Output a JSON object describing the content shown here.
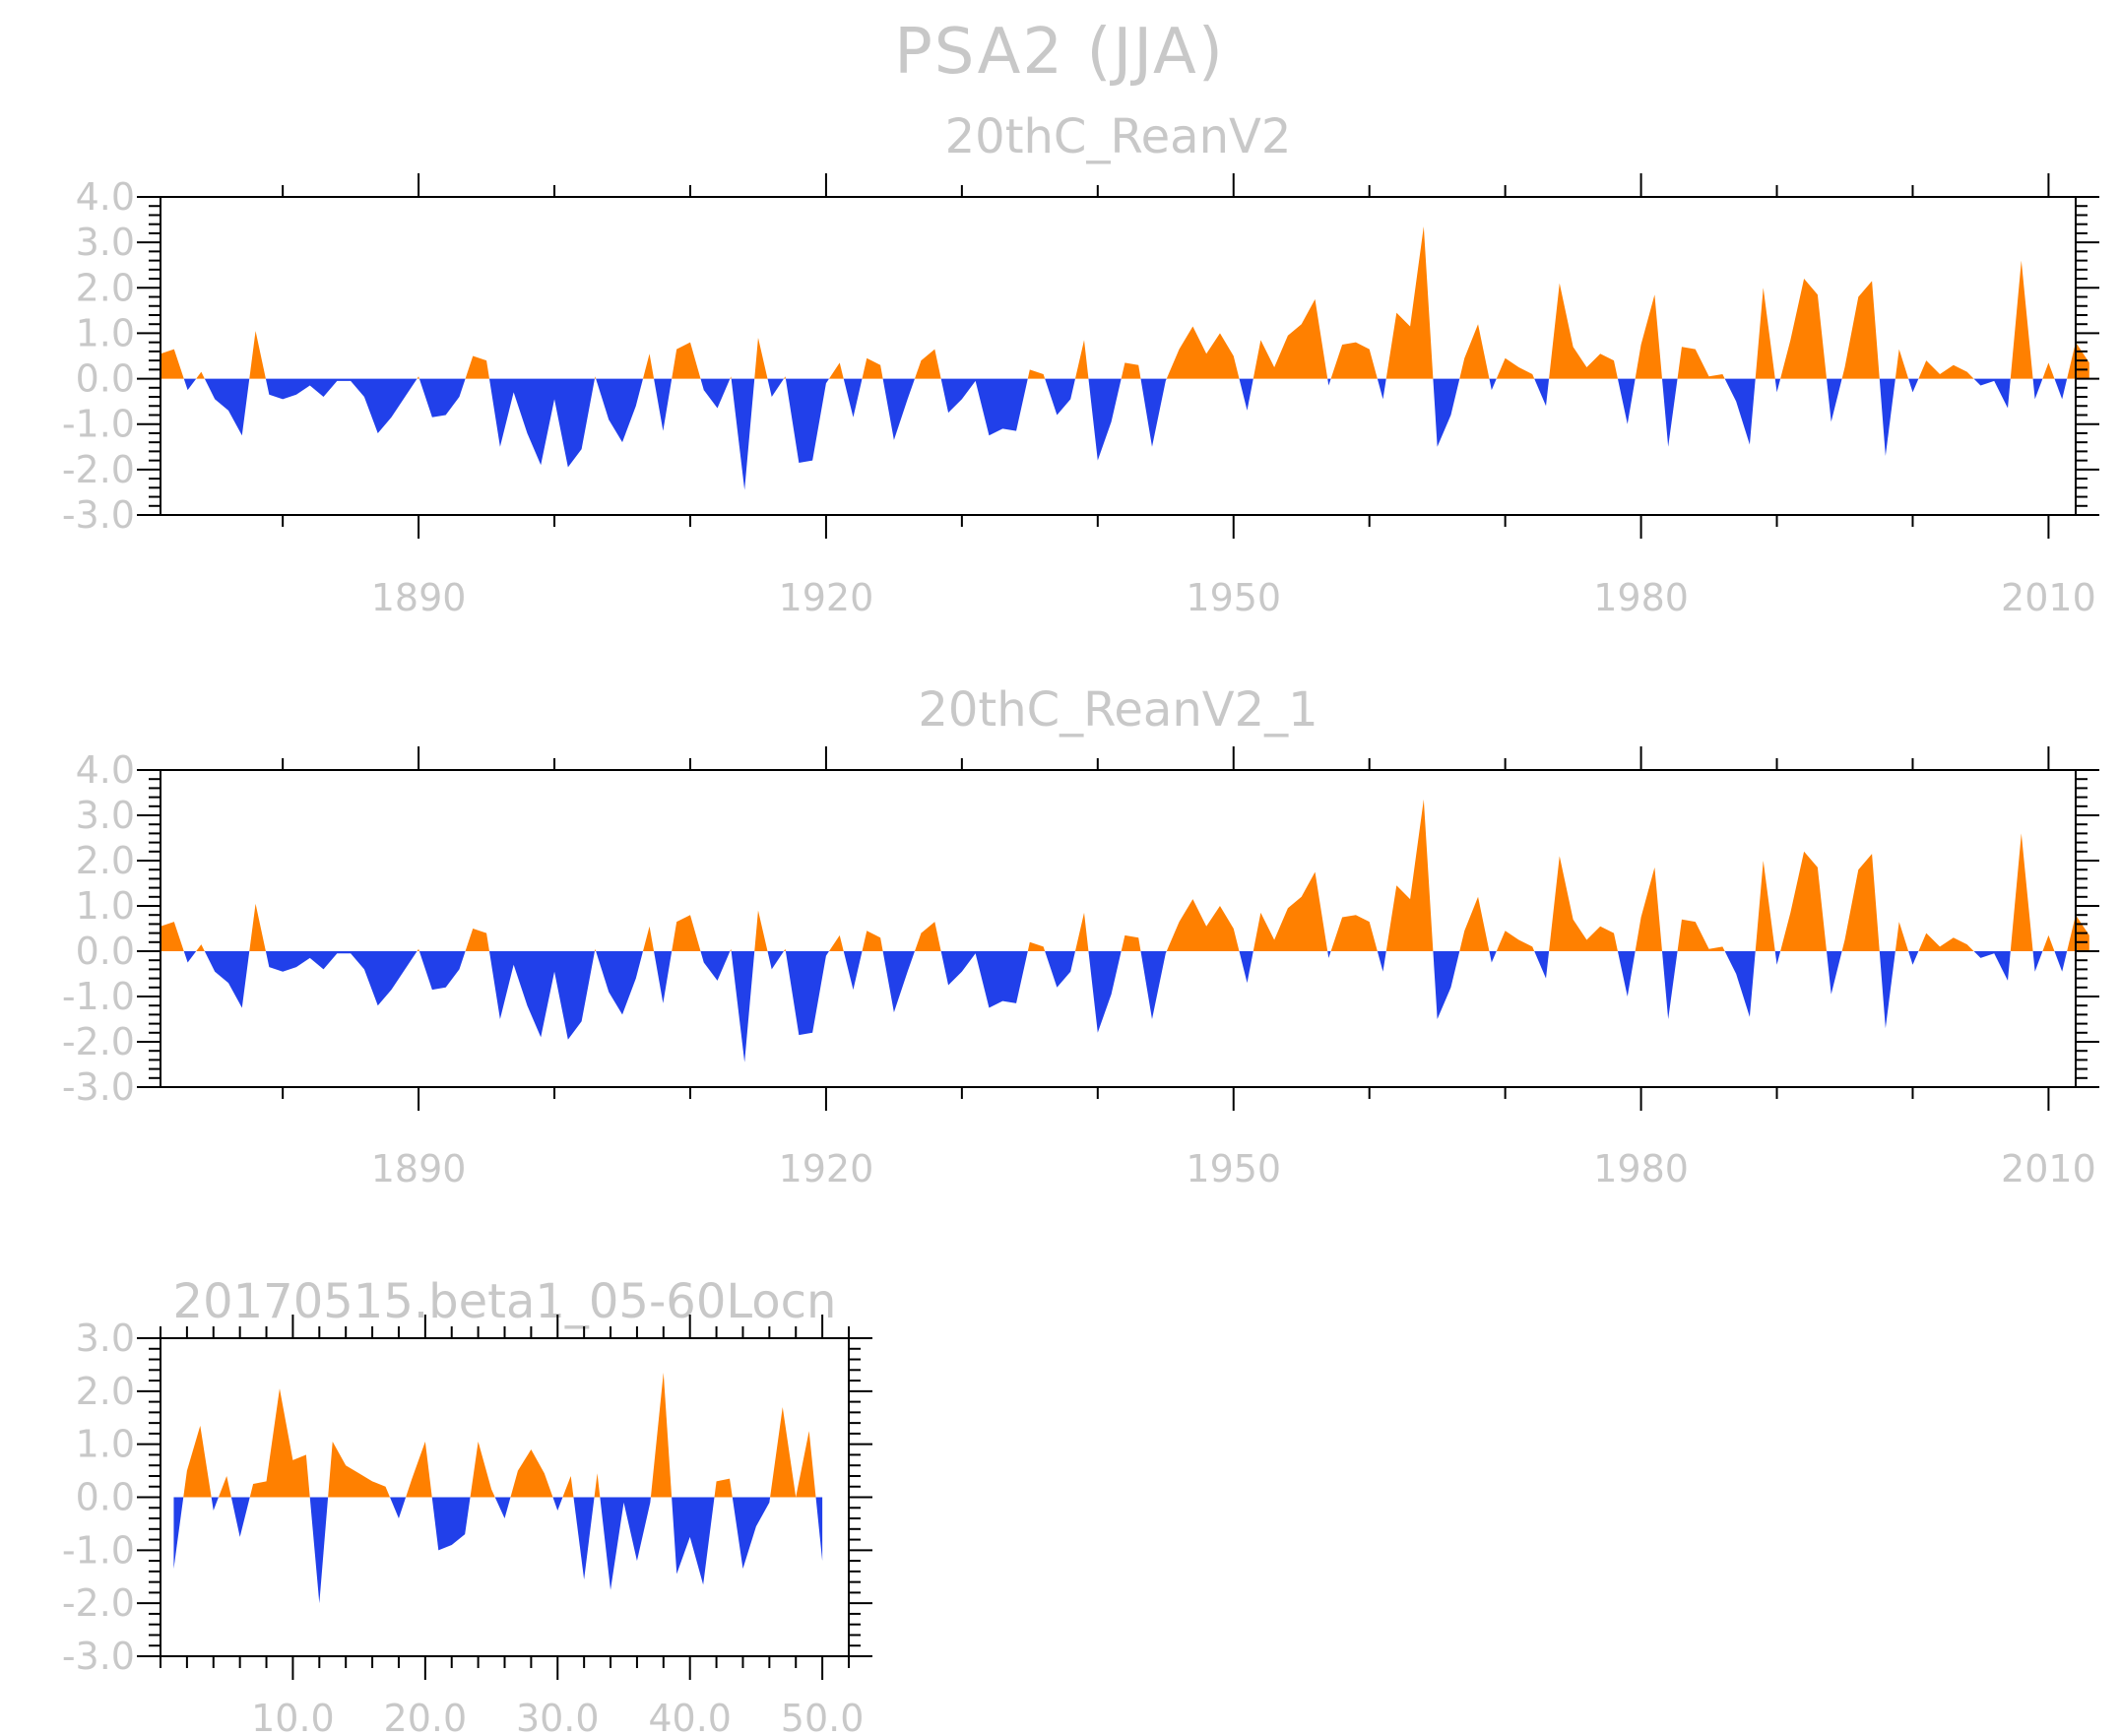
{
  "figure": {
    "title": "PSA2 (JJA)"
  },
  "chart_data": [
    {
      "type": "area",
      "title": "20thC_ReanV2",
      "xlabel": "",
      "ylabel": "",
      "x_start": 1871,
      "xlim": [
        1871,
        2012
      ],
      "ylim": [
        -3.0,
        4.0
      ],
      "y_ticks": [
        -3.0,
        -2.0,
        -1.0,
        0.0,
        1.0,
        2.0,
        3.0,
        4.0
      ],
      "y_tick_labels": [
        "-3.0",
        "-2.0",
        "-1.0",
        "0.0",
        "1.0",
        "2.0",
        "3.0",
        "4.0"
      ],
      "x_ticks": [
        1890,
        1920,
        1950,
        1980,
        2010
      ],
      "x_tick_labels": [
        "1890",
        "1920",
        "1950",
        "1980",
        "2010"
      ],
      "positive_color": "#ff8000",
      "negative_color": "#2140ea",
      "values": [
        0.55,
        0.65,
        -0.25,
        0.15,
        -0.45,
        -0.7,
        -1.25,
        1.05,
        -0.35,
        -0.45,
        -0.35,
        -0.15,
        -0.4,
        -0.05,
        -0.05,
        -0.4,
        -1.2,
        -0.85,
        -0.4,
        0.05,
        -0.85,
        -0.8,
        -0.4,
        0.5,
        0.4,
        -1.5,
        -0.3,
        -1.2,
        -1.9,
        -0.45,
        -1.95,
        -1.55,
        0.05,
        -0.9,
        -1.4,
        -0.6,
        0.55,
        -1.15,
        0.65,
        0.8,
        -0.25,
        -0.65,
        0.05,
        -2.45,
        0.9,
        -0.4,
        0.05,
        -1.85,
        -1.8,
        -0.1,
        0.35,
        -0.85,
        0.45,
        0.3,
        -1.35,
        -0.45,
        0.4,
        0.65,
        -0.75,
        -0.45,
        -0.05,
        -1.25,
        -1.1,
        -1.15,
        0.2,
        0.1,
        -0.8,
        -0.45,
        0.85,
        -1.8,
        -0.95,
        0.35,
        0.3,
        -1.5,
        -0.05,
        0.65,
        1.15,
        0.55,
        1.0,
        0.5,
        -0.7,
        0.85,
        0.25,
        0.95,
        1.2,
        1.75,
        -0.15,
        0.75,
        0.8,
        0.65,
        -0.45,
        1.45,
        1.15,
        3.35,
        -1.5,
        -0.8,
        0.45,
        1.2,
        -0.25,
        0.45,
        0.25,
        0.1,
        -0.6,
        2.1,
        0.7,
        0.25,
        0.55,
        0.4,
        -1.0,
        0.75,
        1.85,
        -1.5,
        0.7,
        0.65,
        0.05,
        0.1,
        -0.5,
        -1.45,
        2.0,
        -0.3,
        0.85,
        2.2,
        1.85,
        -0.95,
        0.25,
        1.8,
        2.15,
        -1.7,
        0.65,
        -0.3,
        0.4,
        0.1,
        0.3,
        0.15,
        -0.15,
        -0.05,
        -0.65,
        2.6,
        -0.45,
        0.35,
        -0.45,
        0.8,
        0.35
      ]
    },
    {
      "type": "area",
      "title": "20thC_ReanV2_1",
      "xlabel": "",
      "ylabel": "",
      "x_start": 1871,
      "xlim": [
        1871,
        2012
      ],
      "ylim": [
        -3.0,
        4.0
      ],
      "y_ticks": [
        -3.0,
        -2.0,
        -1.0,
        0.0,
        1.0,
        2.0,
        3.0,
        4.0
      ],
      "y_tick_labels": [
        "-3.0",
        "-2.0",
        "-1.0",
        "0.0",
        "1.0",
        "2.0",
        "3.0",
        "4.0"
      ],
      "x_ticks": [
        1890,
        1920,
        1950,
        1980,
        2010
      ],
      "x_tick_labels": [
        "1890",
        "1920",
        "1950",
        "1980",
        "2010"
      ],
      "positive_color": "#ff8000",
      "negative_color": "#2140ea",
      "values": [
        0.55,
        0.65,
        -0.25,
        0.15,
        -0.45,
        -0.7,
        -1.25,
        1.05,
        -0.35,
        -0.45,
        -0.35,
        -0.15,
        -0.4,
        -0.05,
        -0.05,
        -0.4,
        -1.2,
        -0.85,
        -0.4,
        0.05,
        -0.85,
        -0.8,
        -0.4,
        0.5,
        0.4,
        -1.5,
        -0.3,
        -1.2,
        -1.9,
        -0.45,
        -1.95,
        -1.55,
        0.05,
        -0.9,
        -1.4,
        -0.6,
        0.55,
        -1.15,
        0.65,
        0.8,
        -0.25,
        -0.65,
        0.05,
        -2.45,
        0.9,
        -0.4,
        0.05,
        -1.85,
        -1.8,
        -0.1,
        0.35,
        -0.85,
        0.45,
        0.3,
        -1.35,
        -0.45,
        0.4,
        0.65,
        -0.75,
        -0.45,
        -0.05,
        -1.25,
        -1.1,
        -1.15,
        0.2,
        0.1,
        -0.8,
        -0.45,
        0.85,
        -1.8,
        -0.95,
        0.35,
        0.3,
        -1.5,
        -0.05,
        0.65,
        1.15,
        0.55,
        1.0,
        0.5,
        -0.7,
        0.85,
        0.25,
        0.95,
        1.2,
        1.75,
        -0.15,
        0.75,
        0.8,
        0.65,
        -0.45,
        1.45,
        1.15,
        3.35,
        -1.5,
        -0.8,
        0.45,
        1.2,
        -0.25,
        0.45,
        0.25,
        0.1,
        -0.6,
        2.1,
        0.7,
        0.25,
        0.55,
        0.4,
        -1.0,
        0.75,
        1.85,
        -1.5,
        0.7,
        0.65,
        0.05,
        0.1,
        -0.5,
        -1.45,
        2.0,
        -0.3,
        0.85,
        2.2,
        1.85,
        -0.95,
        0.25,
        1.8,
        2.15,
        -1.7,
        0.65,
        -0.3,
        0.4,
        0.1,
        0.3,
        0.15,
        -0.15,
        -0.05,
        -0.65,
        2.6,
        -0.45,
        0.35,
        -0.45,
        0.8,
        0.35
      ]
    },
    {
      "type": "area",
      "title": "20170515.beta1_05-60Locn",
      "xlabel": "",
      "ylabel": "",
      "x_start": 1,
      "xlim": [
        0,
        52
      ],
      "ylim": [
        -3.0,
        3.0
      ],
      "y_ticks": [
        -3.0,
        -2.0,
        -1.0,
        0.0,
        1.0,
        2.0,
        3.0
      ],
      "y_tick_labels": [
        "-3.0",
        "-2.0",
        "-1.0",
        "0.0",
        "1.0",
        "2.0",
        "3.0"
      ],
      "x_ticks": [
        10,
        20,
        30,
        40,
        50
      ],
      "x_tick_labels": [
        "10.0",
        "20.0",
        "30.0",
        "40.0",
        "50.0"
      ],
      "positive_color": "#ff8000",
      "negative_color": "#2140ea",
      "values": [
        -1.35,
        0.5,
        1.35,
        -0.25,
        0.4,
        -0.75,
        0.25,
        0.3,
        2.05,
        0.7,
        0.8,
        -2.0,
        1.05,
        0.6,
        0.45,
        0.3,
        0.2,
        -0.4,
        0.35,
        1.05,
        -1.0,
        -0.9,
        -0.7,
        1.05,
        0.15,
        -0.4,
        0.5,
        0.9,
        0.45,
        -0.25,
        0.4,
        -1.55,
        0.45,
        -1.75,
        -0.1,
        -1.2,
        -0.1,
        2.35,
        -1.45,
        -0.75,
        -1.65,
        0.3,
        0.35,
        -1.35,
        -0.55,
        -0.1,
        1.7,
        0.0,
        1.25,
        -1.2
      ]
    }
  ]
}
